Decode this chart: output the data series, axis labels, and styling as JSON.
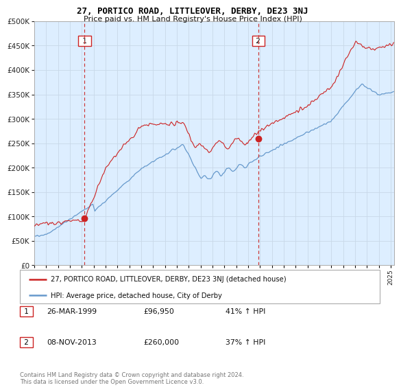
{
  "title": "27, PORTICO ROAD, LITTLEOVER, DERBY, DE23 3NJ",
  "subtitle": "Price paid vs. HM Land Registry's House Price Index (HPI)",
  "legend_line1": "27, PORTICO ROAD, LITTLEOVER, DERBY, DE23 3NJ (detached house)",
  "legend_line2": "HPI: Average price, detached house, City of Derby",
  "table_rows": [
    {
      "num": "1",
      "date": "26-MAR-1999",
      "price": "£96,950",
      "hpi": "41% ↑ HPI"
    },
    {
      "num": "2",
      "date": "08-NOV-2013",
      "price": "£260,000",
      "hpi": "37% ↑ HPI"
    }
  ],
  "footnote": "Contains HM Land Registry data © Crown copyright and database right 2024.\nThis data is licensed under the Open Government Licence v3.0.",
  "hpi_color": "#6699cc",
  "price_color": "#cc2222",
  "dot_color": "#cc2222",
  "vline_color": "#cc3333",
  "bg_color": "#ddeeff",
  "grid_color": "#c8d8e8",
  "sale1_year": 1999.23,
  "sale1_price": 96950,
  "sale2_year": 2013.85,
  "sale2_price": 260000,
  "ylim": [
    0,
    500000
  ],
  "xlim_start": 1995.0,
  "xlim_end": 2025.3
}
